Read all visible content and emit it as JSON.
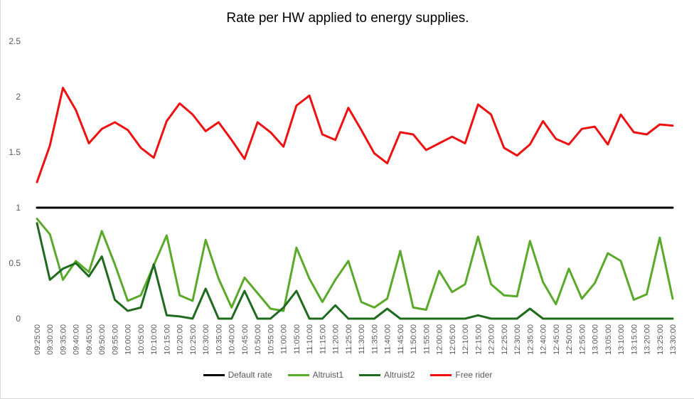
{
  "chart_data": {
    "type": "line",
    "title": "Rate per HW applied to energy supplies.",
    "xlabel": "",
    "ylabel": "",
    "ylim": [
      0,
      2.5
    ],
    "yticks": [
      "0",
      "0.5",
      "1",
      "1.5",
      "2",
      "2.5"
    ],
    "grid": false,
    "legend_position": "bottom",
    "x": [
      "09:25:00",
      "09:30:00",
      "09:35:00",
      "09:40:00",
      "09:45:00",
      "09:50:00",
      "09:55:00",
      "10:00:00",
      "10:05:00",
      "10:10:00",
      "10:15:00",
      "10:20:00",
      "10:25:00",
      "10:30:00",
      "10:35:00",
      "10:40:00",
      "10:45:00",
      "10:50:00",
      "10:55:00",
      "11:00:00",
      "11:05:00",
      "11:10:00",
      "11:15:00",
      "11:20:00",
      "11:25:00",
      "11:30:00",
      "11:35:00",
      "11:40:00",
      "11:45:00",
      "11:50:00",
      "11:55:00",
      "12:00:00",
      "12:05:00",
      "12:10:00",
      "12:15:00",
      "12:20:00",
      "12:25:00",
      "12:30:00",
      "12:35:00",
      "12:40:00",
      "12:45:00",
      "12:50:00",
      "12:55:00",
      "13:00:00",
      "13:05:00",
      "13:10:00",
      "13:15:00",
      "13:20:00",
      "13:25:00",
      "13:30:00"
    ],
    "series": [
      {
        "name": "Default rate",
        "color": "#000000",
        "values": [
          1,
          1,
          1,
          1,
          1,
          1,
          1,
          1,
          1,
          1,
          1,
          1,
          1,
          1,
          1,
          1,
          1,
          1,
          1,
          1,
          1,
          1,
          1,
          1,
          1,
          1,
          1,
          1,
          1,
          1,
          1,
          1,
          1,
          1,
          1,
          1,
          1,
          1,
          1,
          1,
          1,
          1,
          1,
          1,
          1,
          1,
          1,
          1,
          1,
          1
        ]
      },
      {
        "name": "Altruist1",
        "color": "#5aaa2a",
        "values": [
          0.9,
          0.76,
          0.35,
          0.52,
          0.42,
          0.79,
          0.49,
          0.16,
          0.21,
          0.48,
          0.75,
          0.21,
          0.16,
          0.71,
          0.36,
          0.1,
          0.37,
          0.23,
          0.09,
          0.07,
          0.64,
          0.36,
          0.15,
          0.35,
          0.52,
          0.15,
          0.1,
          0.18,
          0.61,
          0.1,
          0.08,
          0.43,
          0.24,
          0.31,
          0.74,
          0.31,
          0.21,
          0.2,
          0.7,
          0.33,
          0.13,
          0.45,
          0.18,
          0.32,
          0.59,
          0.52,
          0.17,
          0.22,
          0.73,
          0.18
        ]
      },
      {
        "name": "Altruist2",
        "color": "#1e6b1e",
        "values": [
          0.86,
          0.35,
          0.45,
          0.5,
          0.38,
          0.56,
          0.17,
          0.07,
          0.1,
          0.49,
          0.03,
          0.02,
          0.0,
          0.27,
          0.0,
          0.0,
          0.25,
          0.0,
          0.0,
          0.1,
          0.25,
          0.0,
          0.0,
          0.12,
          0.0,
          0.0,
          0.0,
          0.09,
          0.0,
          0.0,
          0.0,
          0.0,
          0.0,
          0.0,
          0.03,
          0.0,
          0.0,
          0.0,
          0.09,
          0.0,
          0.0,
          0.0,
          0.0,
          0.0,
          0.0,
          0.0,
          0.0,
          0.0,
          0.0,
          0.0
        ]
      },
      {
        "name": "Free rider",
        "color": "#ee1111",
        "values": [
          1.23,
          1.56,
          2.08,
          1.88,
          1.58,
          1.71,
          1.77,
          1.7,
          1.54,
          1.45,
          1.78,
          1.94,
          1.84,
          1.69,
          1.77,
          1.61,
          1.44,
          1.77,
          1.68,
          1.55,
          1.92,
          2.01,
          1.66,
          1.61,
          1.9,
          1.7,
          1.49,
          1.4,
          1.68,
          1.66,
          1.52,
          1.58,
          1.64,
          1.58,
          1.93,
          1.84,
          1.54,
          1.47,
          1.57,
          1.78,
          1.62,
          1.57,
          1.71,
          1.73,
          1.57,
          1.84,
          1.68,
          1.66,
          1.75,
          1.74
        ]
      }
    ]
  }
}
